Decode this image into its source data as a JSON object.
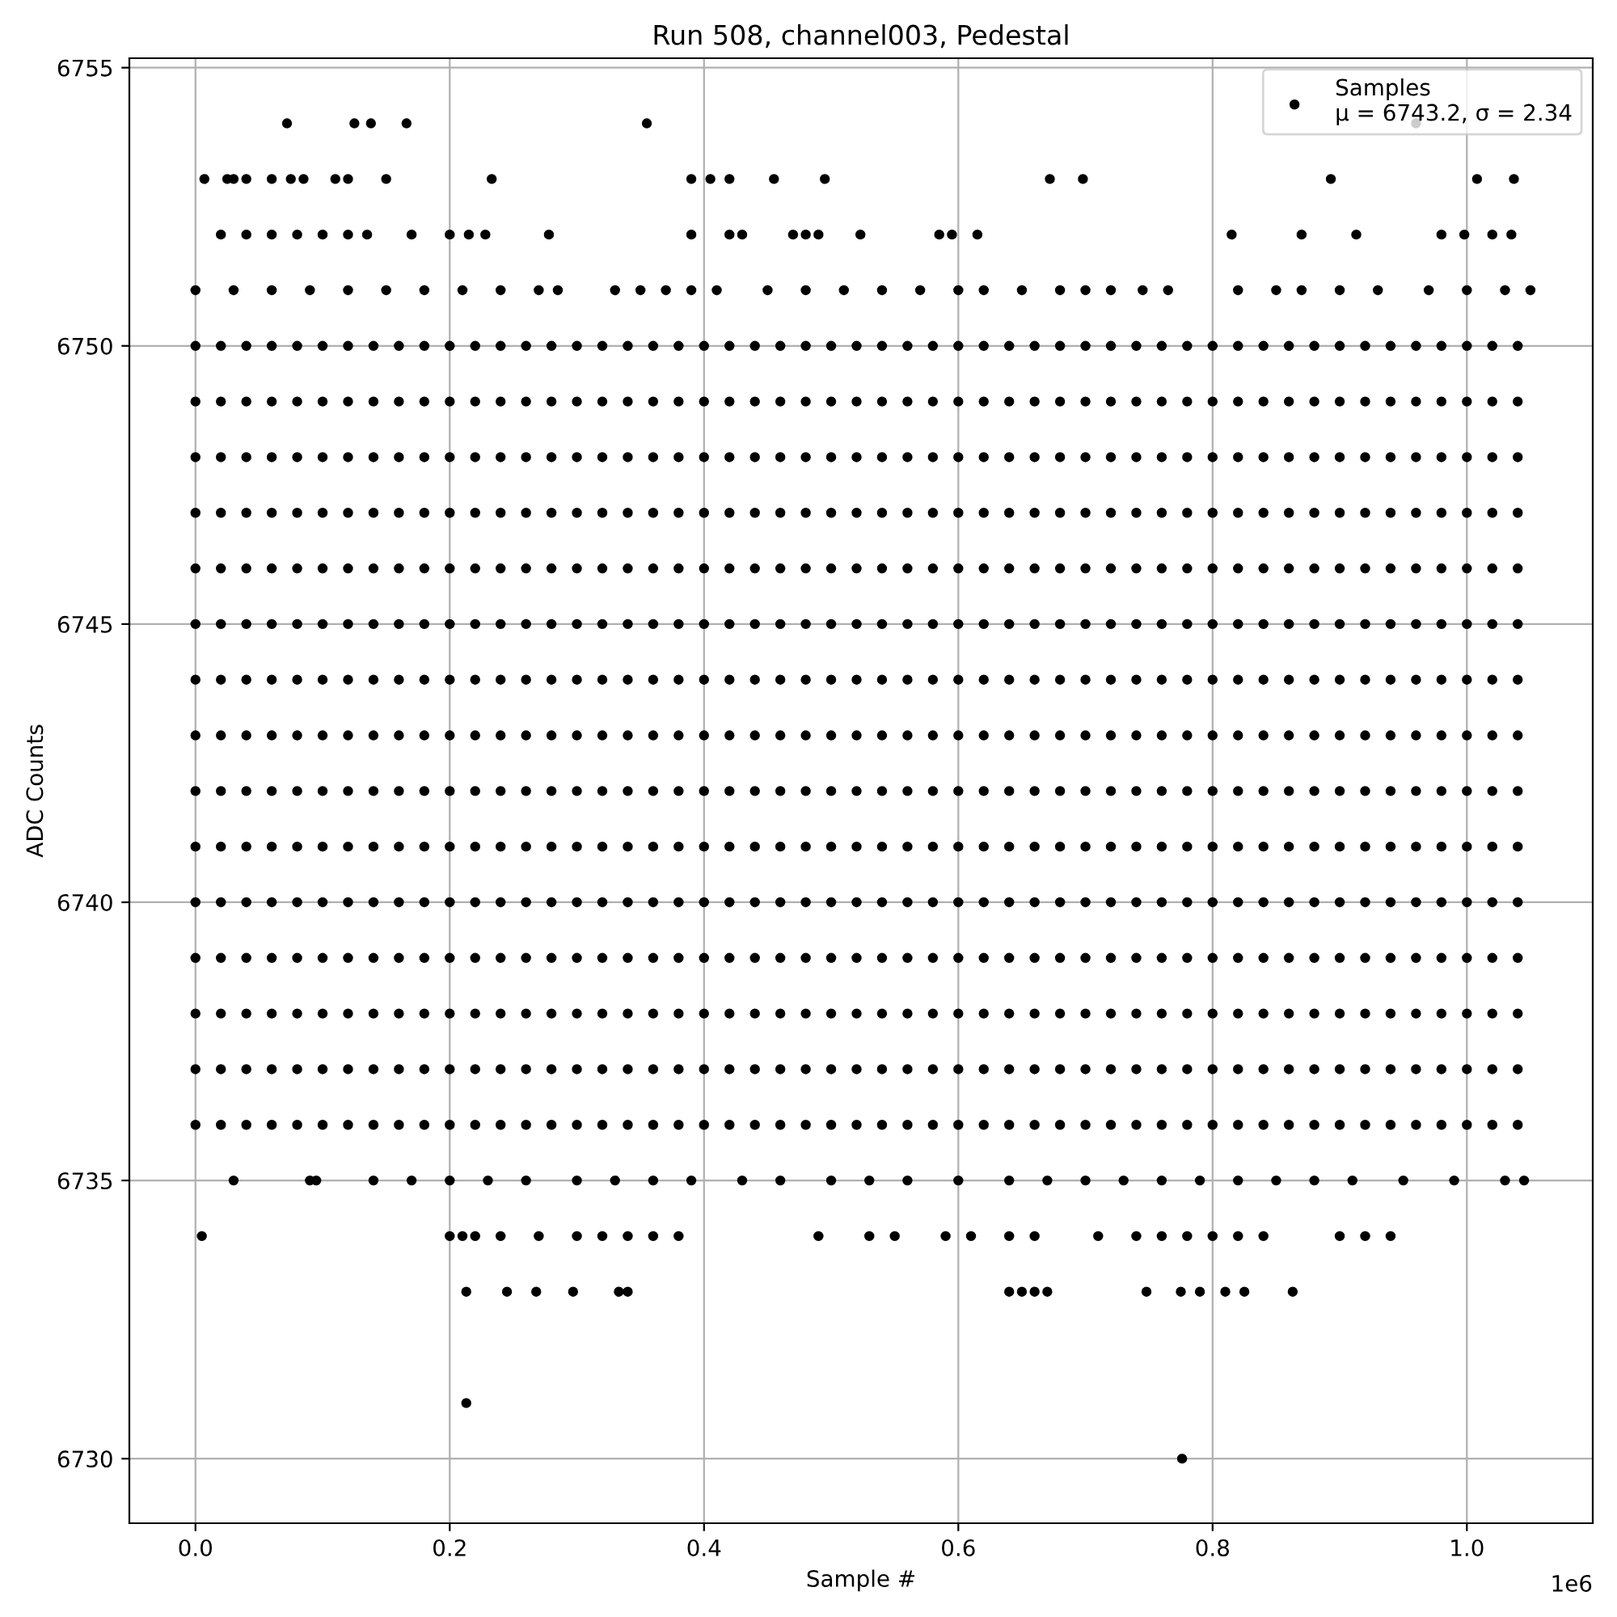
{
  "chart_data": {
    "type": "scatter",
    "title": "Run 508, channel003, Pedestal",
    "xlabel": "Sample #",
    "ylabel": "ADC Counts",
    "annotations": [
      "1e6"
    ],
    "xlim": [
      -0.052,
      1.099
    ],
    "ylim": [
      6728.84,
      6755.17
    ],
    "xticks": [
      {
        "value": 0,
        "label": "0.0"
      },
      0.2,
      0.4,
      0.6,
      0.8,
      {
        "value": 1,
        "label": "1.0"
      }
    ],
    "yticks": [
      6730,
      6735,
      6740,
      6745,
      6750,
      6755
    ],
    "grid": true,
    "legend": "top right",
    "marker": "circle",
    "x": [
      0.0,
      0.02,
      0.04,
      0.06,
      0.08,
      0.1,
      0.12,
      0.14,
      0.16,
      0.18,
      0.2,
      0.22,
      0.24,
      0.26,
      0.28,
      0.3,
      0.32,
      0.34,
      0.36,
      0.38,
      0.4,
      0.42,
      0.44,
      0.46,
      0.48,
      0.5,
      0.52,
      0.54,
      0.56,
      0.58,
      0.6,
      0.62,
      0.64,
      0.66,
      0.68,
      0.7,
      0.72,
      0.74,
      0.76,
      0.78,
      0.8,
      0.82,
      0.84,
      0.86,
      0.88,
      0.9,
      0.92,
      0.94,
      0.96,
      0.98,
      1.0,
      1.02,
      1.04
    ],
    "series": [
      {
        "name": "Samples\nμ = 6743.2, σ = 2.34",
        "color": "#000000",
        "values": [
          6750,
          6750,
          6750,
          6750,
          6750,
          6750,
          6750,
          6750,
          6750,
          6750,
          6750,
          6750,
          6750,
          6750,
          6750,
          6750,
          6750,
          6750,
          6750,
          6750,
          6750,
          6750,
          6750,
          6750,
          6750,
          6750,
          6750,
          6750,
          6750,
          6750,
          6750,
          6750,
          6750,
          6750,
          6750,
          6750,
          6750,
          6750,
          6750,
          6750,
          6750,
          6750,
          6750,
          6750,
          6750,
          6750,
          6750,
          6750,
          6750,
          6750,
          6750,
          6750,
          6750
        ]
      },
      {
        "color": "#000000",
        "values": [
          6749,
          6749,
          6749,
          6749,
          6749,
          6749,
          6749,
          6749,
          6749,
          6749,
          6749,
          6749,
          6749,
          6749,
          6749,
          6749,
          6749,
          6749,
          6749,
          6749,
          6749,
          6749,
          6749,
          6749,
          6749,
          6749,
          6749,
          6749,
          6749,
          6749,
          6749,
          6749,
          6749,
          6749,
          6749,
          6749,
          6749,
          6749,
          6749,
          6749,
          6749,
          6749,
          6749,
          6749,
          6749,
          6749,
          6749,
          6749,
          6749,
          6749,
          6749,
          6749,
          6749
        ]
      },
      {
        "color": "#000000",
        "values": [
          6748,
          6748,
          6748,
          6748,
          6748,
          6748,
          6748,
          6748,
          6748,
          6748,
          6748,
          6748,
          6748,
          6748,
          6748,
          6748,
          6748,
          6748,
          6748,
          6748,
          6748,
          6748,
          6748,
          6748,
          6748,
          6748,
          6748,
          6748,
          6748,
          6748,
          6748,
          6748,
          6748,
          6748,
          6748,
          6748,
          6748,
          6748,
          6748,
          6748,
          6748,
          6748,
          6748,
          6748,
          6748,
          6748,
          6748,
          6748,
          6748,
          6748,
          6748,
          6748,
          6748
        ]
      },
      {
        "color": "#000000",
        "values": [
          6747,
          6747,
          6747,
          6747,
          6747,
          6747,
          6747,
          6747,
          6747,
          6747,
          6747,
          6747,
          6747,
          6747,
          6747,
          6747,
          6747,
          6747,
          6747,
          6747,
          6747,
          6747,
          6747,
          6747,
          6747,
          6747,
          6747,
          6747,
          6747,
          6747,
          6747,
          6747,
          6747,
          6747,
          6747,
          6747,
          6747,
          6747,
          6747,
          6747,
          6747,
          6747,
          6747,
          6747,
          6747,
          6747,
          6747,
          6747,
          6747,
          6747,
          6747,
          6747,
          6747
        ]
      },
      {
        "color": "#000000",
        "values": [
          6746,
          6746,
          6746,
          6746,
          6746,
          6746,
          6746,
          6746,
          6746,
          6746,
          6746,
          6746,
          6746,
          6746,
          6746,
          6746,
          6746,
          6746,
          6746,
          6746,
          6746,
          6746,
          6746,
          6746,
          6746,
          6746,
          6746,
          6746,
          6746,
          6746,
          6746,
          6746,
          6746,
          6746,
          6746,
          6746,
          6746,
          6746,
          6746,
          6746,
          6746,
          6746,
          6746,
          6746,
          6746,
          6746,
          6746,
          6746,
          6746,
          6746,
          6746,
          6746,
          6746
        ]
      },
      {
        "color": "#000000",
        "values": [
          6745,
          6745,
          6745,
          6745,
          6745,
          6745,
          6745,
          6745,
          6745,
          6745,
          6745,
          6745,
          6745,
          6745,
          6745,
          6745,
          6745,
          6745,
          6745,
          6745,
          6745,
          6745,
          6745,
          6745,
          6745,
          6745,
          6745,
          6745,
          6745,
          6745,
          6745,
          6745,
          6745,
          6745,
          6745,
          6745,
          6745,
          6745,
          6745,
          6745,
          6745,
          6745,
          6745,
          6745,
          6745,
          6745,
          6745,
          6745,
          6745,
          6745,
          6745,
          6745,
          6745
        ]
      },
      {
        "color": "#000000",
        "values": [
          6744,
          6744,
          6744,
          6744,
          6744,
          6744,
          6744,
          6744,
          6744,
          6744,
          6744,
          6744,
          6744,
          6744,
          6744,
          6744,
          6744,
          6744,
          6744,
          6744,
          6744,
          6744,
          6744,
          6744,
          6744,
          6744,
          6744,
          6744,
          6744,
          6744,
          6744,
          6744,
          6744,
          6744,
          6744,
          6744,
          6744,
          6744,
          6744,
          6744,
          6744,
          6744,
          6744,
          6744,
          6744,
          6744,
          6744,
          6744,
          6744,
          6744,
          6744,
          6744,
          6744
        ]
      },
      {
        "color": "#000000",
        "values": [
          6743,
          6743,
          6743,
          6743,
          6743,
          6743,
          6743,
          6743,
          6743,
          6743,
          6743,
          6743,
          6743,
          6743,
          6743,
          6743,
          6743,
          6743,
          6743,
          6743,
          6743,
          6743,
          6743,
          6743,
          6743,
          6743,
          6743,
          6743,
          6743,
          6743,
          6743,
          6743,
          6743,
          6743,
          6743,
          6743,
          6743,
          6743,
          6743,
          6743,
          6743,
          6743,
          6743,
          6743,
          6743,
          6743,
          6743,
          6743,
          6743,
          6743,
          6743,
          6743,
          6743
        ]
      },
      {
        "color": "#000000",
        "values": [
          6742,
          6742,
          6742,
          6742,
          6742,
          6742,
          6742,
          6742,
          6742,
          6742,
          6742,
          6742,
          6742,
          6742,
          6742,
          6742,
          6742,
          6742,
          6742,
          6742,
          6742,
          6742,
          6742,
          6742,
          6742,
          6742,
          6742,
          6742,
          6742,
          6742,
          6742,
          6742,
          6742,
          6742,
          6742,
          6742,
          6742,
          6742,
          6742,
          6742,
          6742,
          6742,
          6742,
          6742,
          6742,
          6742,
          6742,
          6742,
          6742,
          6742,
          6742,
          6742,
          6742
        ]
      },
      {
        "color": "#000000",
        "values": [
          6741,
          6741,
          6741,
          6741,
          6741,
          6741,
          6741,
          6741,
          6741,
          6741,
          6741,
          6741,
          6741,
          6741,
          6741,
          6741,
          6741,
          6741,
          6741,
          6741,
          6741,
          6741,
          6741,
          6741,
          6741,
          6741,
          6741,
          6741,
          6741,
          6741,
          6741,
          6741,
          6741,
          6741,
          6741,
          6741,
          6741,
          6741,
          6741,
          6741,
          6741,
          6741,
          6741,
          6741,
          6741,
          6741,
          6741,
          6741,
          6741,
          6741,
          6741,
          6741,
          6741
        ]
      },
      {
        "color": "#000000",
        "values": [
          6740,
          6740,
          6740,
          6740,
          6740,
          6740,
          6740,
          6740,
          6740,
          6740,
          6740,
          6740,
          6740,
          6740,
          6740,
          6740,
          6740,
          6740,
          6740,
          6740,
          6740,
          6740,
          6740,
          6740,
          6740,
          6740,
          6740,
          6740,
          6740,
          6740,
          6740,
          6740,
          6740,
          6740,
          6740,
          6740,
          6740,
          6740,
          6740,
          6740,
          6740,
          6740,
          6740,
          6740,
          6740,
          6740,
          6740,
          6740,
          6740,
          6740,
          6740,
          6740,
          6740
        ]
      },
      {
        "color": "#000000",
        "values": [
          6739,
          6739,
          6739,
          6739,
          6739,
          6739,
          6739,
          6739,
          6739,
          6739,
          6739,
          6739,
          6739,
          6739,
          6739,
          6739,
          6739,
          6739,
          6739,
          6739,
          6739,
          6739,
          6739,
          6739,
          6739,
          6739,
          6739,
          6739,
          6739,
          6739,
          6739,
          6739,
          6739,
          6739,
          6739,
          6739,
          6739,
          6739,
          6739,
          6739,
          6739,
          6739,
          6739,
          6739,
          6739,
          6739,
          6739,
          6739,
          6739,
          6739,
          6739,
          6739,
          6739
        ]
      },
      {
        "color": "#000000",
        "values": [
          6738,
          6738,
          6738,
          6738,
          6738,
          6738,
          6738,
          6738,
          6738,
          6738,
          6738,
          6738,
          6738,
          6738,
          6738,
          6738,
          6738,
          6738,
          6738,
          6738,
          6738,
          6738,
          6738,
          6738,
          6738,
          6738,
          6738,
          6738,
          6738,
          6738,
          6738,
          6738,
          6738,
          6738,
          6738,
          6738,
          6738,
          6738,
          6738,
          6738,
          6738,
          6738,
          6738,
          6738,
          6738,
          6738,
          6738,
          6738,
          6738,
          6738,
          6738,
          6738,
          6738
        ]
      },
      {
        "color": "#000000",
        "values": [
          6737,
          6737,
          6737,
          6737,
          6737,
          6737,
          6737,
          6737,
          6737,
          6737,
          6737,
          6737,
          6737,
          6737,
          6737,
          6737,
          6737,
          6737,
          6737,
          6737,
          6737,
          6737,
          6737,
          6737,
          6737,
          6737,
          6737,
          6737,
          6737,
          6737,
          6737,
          6737,
          6737,
          6737,
          6737,
          6737,
          6737,
          6737,
          6737,
          6737,
          6737,
          6737,
          6737,
          6737,
          6737,
          6737,
          6737,
          6737,
          6737,
          6737,
          6737,
          6737,
          6737
        ]
      },
      {
        "color": "#000000",
        "values": [
          6736,
          6736,
          6736,
          6736,
          6736,
          6736,
          6736,
          6736,
          6736,
          6736,
          6736,
          6736,
          6736,
          6736,
          6736,
          6736,
          6736,
          6736,
          6736,
          6736,
          6736,
          6736,
          6736,
          6736,
          6736,
          6736,
          6736,
          6736,
          6736,
          6736,
          6736,
          6736,
          6736,
          6736,
          6736,
          6736,
          6736,
          6736,
          6736,
          6736,
          6736,
          6736,
          6736,
          6736,
          6736,
          6736,
          6736,
          6736,
          6736,
          6736,
          6736,
          6736,
          6736
        ]
      },
      {
        "color": "#000000",
        "x": [
          0.072,
          0.125,
          0.138,
          0.166,
          0.355,
          0.96,
          0.007,
          0.025,
          0.03,
          0.04,
          0.06,
          0.075,
          0.085,
          0.11,
          0.12,
          0.15,
          0.233,
          0.39,
          0.405,
          0.42,
          0.455,
          0.495,
          0.672,
          0.698,
          0.893,
          1.008,
          1.037,
          0.02,
          0.04,
          0.06,
          0.08,
          0.1,
          0.12,
          0.135,
          0.17,
          0.2,
          0.215,
          0.228,
          0.278,
          0.39,
          0.42,
          0.43,
          0.47,
          0.48,
          0.49,
          0.523,
          0.585,
          0.595,
          0.615,
          0.815,
          0.87,
          0.913,
          0.98,
          0.998,
          1.02,
          1.035,
          0.0,
          0.03,
          0.06,
          0.09,
          0.12,
          0.15,
          0.18,
          0.21,
          0.24,
          0.27,
          0.285,
          0.33,
          0.35,
          0.37,
          0.39,
          0.41,
          0.45,
          0.48,
          0.51,
          0.54,
          0.57,
          0.6,
          0.62,
          0.65,
          0.68,
          0.7,
          0.72,
          0.745,
          0.765,
          0.82,
          0.85,
          0.87,
          0.9,
          0.93,
          0.97,
          1.0,
          1.03,
          1.05,
          0.03,
          0.09,
          0.095,
          0.14,
          0.17,
          0.2,
          0.23,
          0.26,
          0.3,
          0.33,
          0.36,
          0.39,
          0.43,
          0.46,
          0.5,
          0.53,
          0.56,
          0.6,
          0.64,
          0.67,
          0.7,
          0.73,
          0.76,
          0.79,
          0.82,
          0.85,
          0.88,
          0.91,
          0.95,
          0.99,
          1.03,
          1.045,
          0.005,
          0.2,
          0.21,
          0.22,
          0.24,
          0.27,
          0.3,
          0.32,
          0.34,
          0.36,
          0.38,
          0.49,
          0.53,
          0.55,
          0.59,
          0.61,
          0.64,
          0.66,
          0.71,
          0.74,
          0.76,
          0.78,
          0.8,
          0.82,
          0.84,
          0.9,
          0.92,
          0.94,
          0.213,
          0.245,
          0.268,
          0.297,
          0.333,
          0.34,
          0.64,
          0.65,
          0.66,
          0.67,
          0.748,
          0.775,
          0.79,
          0.81,
          0.825,
          0.863,
          0.213,
          0.776
        ],
        "values": [
          6754,
          6754,
          6754,
          6754,
          6754,
          6754,
          6753,
          6753,
          6753,
          6753,
          6753,
          6753,
          6753,
          6753,
          6753,
          6753,
          6753,
          6753,
          6753,
          6753,
          6753,
          6753,
          6753,
          6753,
          6753,
          6753,
          6753,
          6752,
          6752,
          6752,
          6752,
          6752,
          6752,
          6752,
          6752,
          6752,
          6752,
          6752,
          6752,
          6752,
          6752,
          6752,
          6752,
          6752,
          6752,
          6752,
          6752,
          6752,
          6752,
          6752,
          6752,
          6752,
          6752,
          6752,
          6752,
          6752,
          6751,
          6751,
          6751,
          6751,
          6751,
          6751,
          6751,
          6751,
          6751,
          6751,
          6751,
          6751,
          6751,
          6751,
          6751,
          6751,
          6751,
          6751,
          6751,
          6751,
          6751,
          6751,
          6751,
          6751,
          6751,
          6751,
          6751,
          6751,
          6751,
          6751,
          6751,
          6751,
          6751,
          6751,
          6751,
          6751,
          6751,
          6751,
          6735,
          6735,
          6735,
          6735,
          6735,
          6735,
          6735,
          6735,
          6735,
          6735,
          6735,
          6735,
          6735,
          6735,
          6735,
          6735,
          6735,
          6735,
          6735,
          6735,
          6735,
          6735,
          6735,
          6735,
          6735,
          6735,
          6735,
          6735,
          6735,
          6735,
          6735,
          6735,
          6734,
          6734,
          6734,
          6734,
          6734,
          6734,
          6734,
          6734,
          6734,
          6734,
          6734,
          6734,
          6734,
          6734,
          6734,
          6734,
          6734,
          6734,
          6734,
          6734,
          6734,
          6734,
          6734,
          6734,
          6734,
          6734,
          6734,
          6734,
          6733,
          6733,
          6733,
          6733,
          6733,
          6733,
          6733,
          6733,
          6733,
          6733,
          6733,
          6733,
          6733,
          6733,
          6733,
          6733,
          6731,
          6730
        ]
      }
    ]
  }
}
